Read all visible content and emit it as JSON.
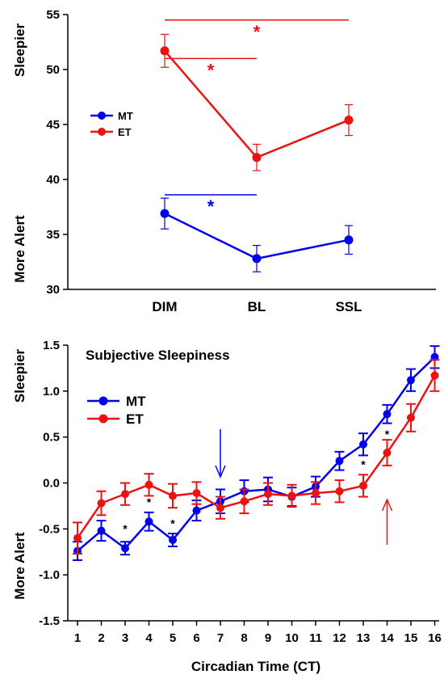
{
  "chart_data": [
    {
      "type": "line",
      "title": "",
      "xlabel": "",
      "ylabel_top": "Sleepier",
      "ylabel_bottom": "More Alert",
      "categories": [
        "DIM",
        "BL",
        "SSL"
      ],
      "ylim": [
        30,
        55
      ],
      "yticks": [
        30,
        35,
        40,
        45,
        50,
        55
      ],
      "legend_position": "left",
      "grid": false,
      "series": [
        {
          "name": "MT",
          "color": "#0000ee",
          "values": [
            36.9,
            32.8,
            34.5
          ],
          "errors": [
            1.4,
            1.2,
            1.3
          ]
        },
        {
          "name": "ET",
          "color": "#ee1111",
          "values": [
            51.7,
            42.0,
            45.4
          ],
          "errors": [
            1.5,
            1.2,
            1.4
          ]
        }
      ],
      "significance": [
        {
          "label": "*",
          "color": "#ee1111",
          "from": "DIM",
          "to": "SSL",
          "y": 54.5
        },
        {
          "label": "*",
          "color": "#ee1111",
          "from": "DIM",
          "to": "BL",
          "y": 51.0
        },
        {
          "label": "*",
          "color": "#0000ee",
          "from": "DIM",
          "to": "BL",
          "y": 38.6
        }
      ]
    },
    {
      "type": "line",
      "title": "Subjective Sleepiness",
      "xlabel": "Circadian Time (CT)",
      "ylabel_top": "Sleepier",
      "ylabel_bottom": "More Alert",
      "x": [
        1,
        2,
        3,
        4,
        5,
        6,
        7,
        8,
        9,
        10,
        11,
        12,
        13,
        14,
        15,
        16
      ],
      "xlim": [
        0.6,
        16.4
      ],
      "ylim": [
        -1.5,
        1.5
      ],
      "yticks": [
        "-1.5",
        "-1.0",
        "-0.5",
        "0.0",
        "0.5",
        "1.0",
        "1.5"
      ],
      "legend_position": "left",
      "grid": false,
      "series": [
        {
          "name": "MT",
          "color": "#0000ee",
          "values": [
            -0.74,
            -0.52,
            -0.71,
            -0.42,
            -0.62,
            -0.3,
            -0.2,
            -0.09,
            -0.07,
            -0.15,
            -0.04,
            0.24,
            0.42,
            0.75,
            1.12,
            1.37
          ],
          "errors": [
            0.1,
            0.11,
            0.07,
            0.1,
            0.07,
            0.11,
            0.13,
            0.12,
            0.13,
            0.1,
            0.11,
            0.1,
            0.12,
            0.1,
            0.12,
            0.12
          ]
        },
        {
          "name": "ET",
          "color": "#ee1111",
          "values": [
            -0.6,
            -0.22,
            -0.12,
            -0.02,
            -0.14,
            -0.11,
            -0.27,
            -0.2,
            -0.12,
            -0.14,
            -0.11,
            -0.09,
            -0.03,
            0.33,
            0.71,
            1.17
          ],
          "errors": [
            0.17,
            0.13,
            0.12,
            0.12,
            0.13,
            0.12,
            0.12,
            0.13,
            0.12,
            0.12,
            0.12,
            0.12,
            0.12,
            0.14,
            0.15,
            0.17
          ]
        }
      ],
      "asterisks": [
        {
          "x": 3,
          "y": -0.49,
          "label": "*"
        },
        {
          "x": 4,
          "y": -0.2,
          "label": "*"
        },
        {
          "x": 5,
          "y": -0.43,
          "label": "*"
        },
        {
          "x": 13,
          "y": 0.21,
          "label": "*"
        },
        {
          "x": 14,
          "y": 0.54,
          "label": "*"
        }
      ],
      "arrows": [
        {
          "color": "#0000ee",
          "x": 7,
          "direction": "down"
        },
        {
          "color": "#ee1111",
          "x": 14,
          "direction": "up"
        }
      ]
    }
  ]
}
